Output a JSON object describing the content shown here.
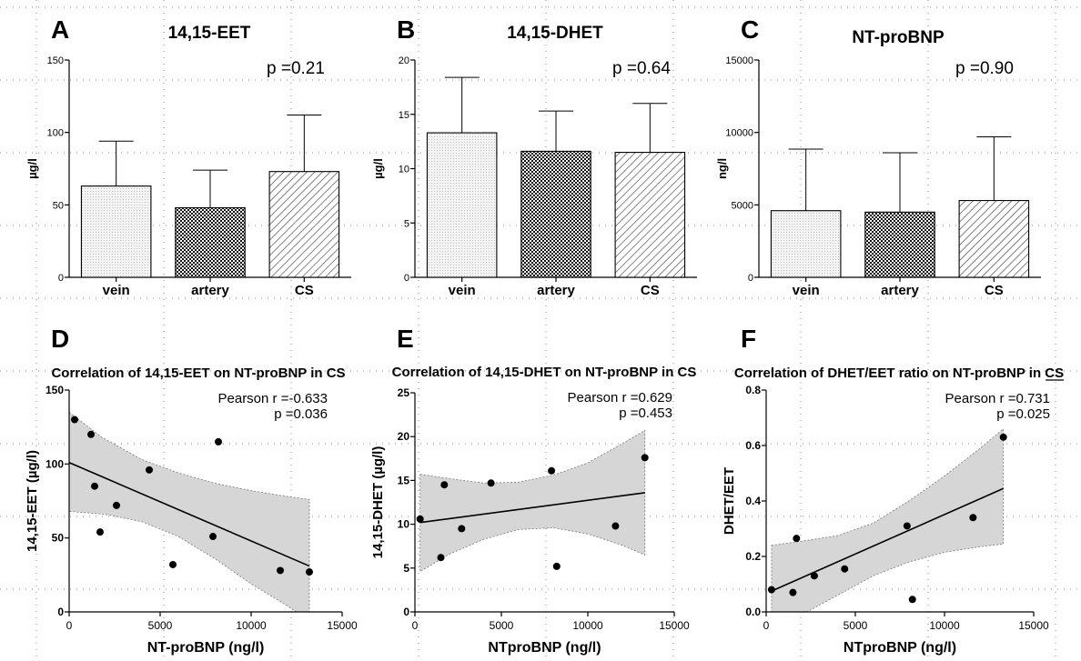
{
  "colors": {
    "axis": "#000000",
    "band": "#d6d6d6",
    "light_bar": "#eeeeee",
    "grid_dots": "#888888"
  },
  "chart_data": [
    {
      "panel": "A",
      "type": "bar",
      "title": "14,15-EET",
      "ylabel": "µg/l",
      "categories": [
        "vein",
        "artery",
        "CS"
      ],
      "values": [
        63,
        48,
        73
      ],
      "errors": [
        94,
        74,
        112
      ],
      "ylim": [
        0,
        150
      ],
      "yticks": [
        "0",
        "50",
        "100",
        "150"
      ],
      "pvalue": "p =0.21"
    },
    {
      "panel": "B",
      "type": "bar",
      "title": "14,15-DHET",
      "ylabel": "µg/l",
      "categories": [
        "vein",
        "artery",
        "CS"
      ],
      "values": [
        13.3,
        11.6,
        11.5
      ],
      "errors": [
        18.4,
        15.3,
        16.0
      ],
      "ylim": [
        0,
        20
      ],
      "yticks": [
        "0",
        "5",
        "10",
        "15",
        "20"
      ],
      "pvalue": "p =0.64"
    },
    {
      "panel": "C",
      "type": "bar",
      "title": "NT-proBNP",
      "ylabel": "ng/l",
      "categories": [
        "vein",
        "artery",
        "CS"
      ],
      "values": [
        4600,
        4500,
        5300
      ],
      "errors": [
        8850,
        8600,
        9700
      ],
      "ylim": [
        0,
        15000
      ],
      "yticks": [
        "0",
        "5000",
        "10000",
        "15000"
      ],
      "pvalue": "p =0.90"
    },
    {
      "panel": "D",
      "type": "scatter",
      "title": "Correlation of 14,15-EET on NT-proBNP in CS",
      "xlabel": "NT-proBNP (ng/l)",
      "ylabel": "14,15-EET (µg/l)",
      "xlim": [
        0,
        15000
      ],
      "ylim": [
        0,
        150
      ],
      "xticks": [
        "0",
        "5000",
        "10000",
        "15000"
      ],
      "yticks": [
        "0",
        "50",
        "100",
        "150"
      ],
      "x": [
        300,
        1200,
        1400,
        1700,
        2600,
        4400,
        5700,
        7900,
        8200,
        11600,
        13200
      ],
      "y": [
        130,
        120,
        85,
        54,
        72,
        96,
        32,
        51,
        115,
        28,
        27
      ],
      "fit": [
        [
          0,
          101
        ],
        [
          13200,
          31
        ]
      ],
      "band_upper": [
        [
          0,
          135
        ],
        [
          1800,
          118
        ],
        [
          4000,
          103
        ],
        [
          6000,
          94
        ],
        [
          8000,
          87
        ],
        [
          10000,
          82
        ],
        [
          12000,
          78
        ],
        [
          13200,
          76
        ]
      ],
      "band_lower": [
        [
          0,
          68
        ],
        [
          2000,
          66
        ],
        [
          4000,
          61
        ],
        [
          6000,
          51
        ],
        [
          8000,
          36
        ],
        [
          10000,
          19
        ],
        [
          12000,
          4
        ],
        [
          13200,
          -6
        ]
      ],
      "pearson": "Pearson r =-0.633",
      "pvalue": "p =0.036"
    },
    {
      "panel": "E",
      "type": "scatter",
      "title": "Correlation of 14,15-DHET on NT-proBNP in CS",
      "xlabel": "NTproBNP (ng/l)",
      "ylabel": "14,15-DHET (µg/l)",
      "xlim": [
        0,
        15000
      ],
      "ylim": [
        0,
        25
      ],
      "xticks": [
        "0",
        "5000",
        "10000",
        "15000"
      ],
      "yticks": [
        "0",
        "5",
        "10",
        "15",
        "20",
        "25"
      ],
      "x": [
        300,
        1500,
        1700,
        2700,
        4400,
        7900,
        8200,
        11600,
        13300
      ],
      "y": [
        10.6,
        6.2,
        14.5,
        9.5,
        14.7,
        16.1,
        5.2,
        9.8,
        17.6
      ],
      "fit": [
        [
          300,
          10.2
        ],
        [
          13300,
          13.6
        ]
      ],
      "band_upper": [
        [
          300,
          15.7
        ],
        [
          2000,
          15.2
        ],
        [
          4000,
          14.7
        ],
        [
          6000,
          14.8
        ],
        [
          8000,
          15.6
        ],
        [
          10000,
          17.0
        ],
        [
          12000,
          19.2
        ],
        [
          13300,
          20.7
        ]
      ],
      "band_lower": [
        [
          300,
          4.6
        ],
        [
          2000,
          6.6
        ],
        [
          4000,
          8.3
        ],
        [
          6000,
          9.4
        ],
        [
          8000,
          9.6
        ],
        [
          10000,
          8.9
        ],
        [
          12000,
          7.6
        ],
        [
          13300,
          6.5
        ]
      ],
      "pearson": "Pearson r =0.629",
      "pvalue": "p =0.453"
    },
    {
      "panel": "F",
      "type": "scatter",
      "title": "Correlation of DHET/EET ratio on NT-proBNP in CS",
      "xlabel": "NTproBNP (ng/l)",
      "ylabel": "DHET/EET",
      "xlim": [
        0,
        15000
      ],
      "ylim": [
        0,
        0.8
      ],
      "xticks": [
        "0",
        "5000",
        "10000",
        "15000"
      ],
      "yticks": [
        "0.0",
        "0.2",
        "0.4",
        "0.6",
        "0.8"
      ],
      "x": [
        300,
        1500,
        1700,
        2700,
        4400,
        7900,
        8200,
        11600,
        13300
      ],
      "y": [
        0.08,
        0.07,
        0.265,
        0.13,
        0.155,
        0.31,
        0.045,
        0.34,
        0.63
      ],
      "fit": [
        [
          300,
          0.075
        ],
        [
          13300,
          0.445
        ]
      ],
      "band_upper": [
        [
          300,
          0.24
        ],
        [
          2000,
          0.255
        ],
        [
          4000,
          0.275
        ],
        [
          6000,
          0.32
        ],
        [
          8000,
          0.4
        ],
        [
          10000,
          0.49
        ],
        [
          12000,
          0.59
        ],
        [
          13300,
          0.66
        ]
      ],
      "band_lower": [
        [
          300,
          -0.09
        ],
        [
          2000,
          -0.01
        ],
        [
          4000,
          0.06
        ],
        [
          6000,
          0.13
        ],
        [
          8000,
          0.18
        ],
        [
          10000,
          0.215
        ],
        [
          12000,
          0.235
        ],
        [
          13300,
          0.245
        ]
      ],
      "pearson": "Pearson r =0.731",
      "pvalue": "p =0.025"
    }
  ]
}
